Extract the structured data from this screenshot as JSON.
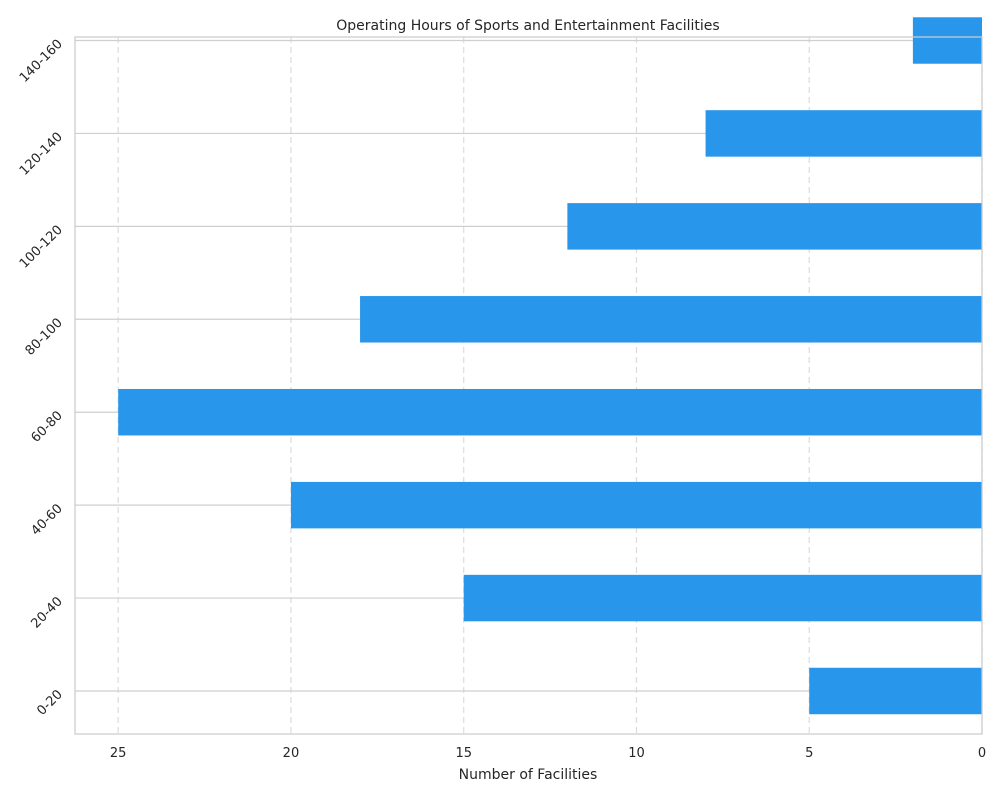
{
  "chart_data": {
    "type": "bar",
    "orientation": "horizontal",
    "title": "Operating Hours of Sports and Entertainment Facilities",
    "xlabel": "Number of Facilities",
    "ylabel": "",
    "categories": [
      "0-20",
      "20-40",
      "40-60",
      "60-80",
      "80-100",
      "100-120",
      "120-140",
      "140-160"
    ],
    "values": [
      5,
      15,
      20,
      25,
      18,
      12,
      8,
      2
    ],
    "xlim": [
      26.25,
      0
    ],
    "x_axis_inverted": true,
    "x_ticks": [
      25,
      20,
      15,
      10,
      5,
      0
    ],
    "grid": {
      "x": "dashed",
      "y": "solid"
    },
    "bar_color": "#2896ea",
    "legend": "none"
  }
}
